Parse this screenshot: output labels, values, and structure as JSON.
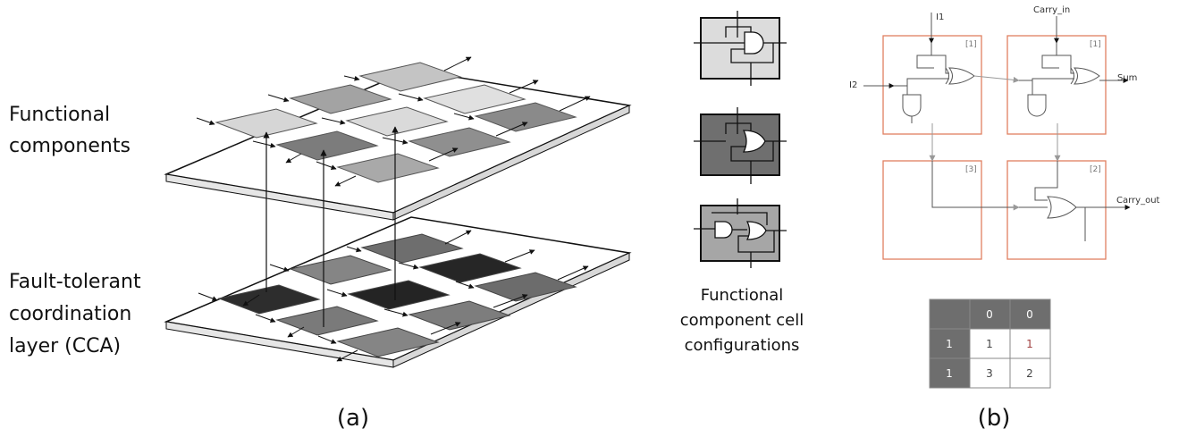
{
  "panel_a": {
    "label_functional": [
      "Functional",
      "components"
    ],
    "label_cca": [
      "Fault-tolerant",
      "coordination",
      "layer (CCA)"
    ],
    "caption": "(a)",
    "config_caption": [
      "Functional",
      "component cell",
      "configurations"
    ]
  },
  "panel_b": {
    "caption": "(b)",
    "signals": {
      "i1": "I1",
      "i2": "I2",
      "carry_in": "Carry_in",
      "sum": "Sum",
      "carry_out": "Carry_out"
    },
    "cell_tags": [
      "[1]",
      "[1]",
      "[3]",
      "[2]"
    ],
    "table": {
      "header": [
        "",
        "0",
        "0"
      ],
      "rows": [
        [
          "1",
          "1",
          "1"
        ],
        [
          "1",
          "3",
          "2"
        ]
      ]
    }
  }
}
